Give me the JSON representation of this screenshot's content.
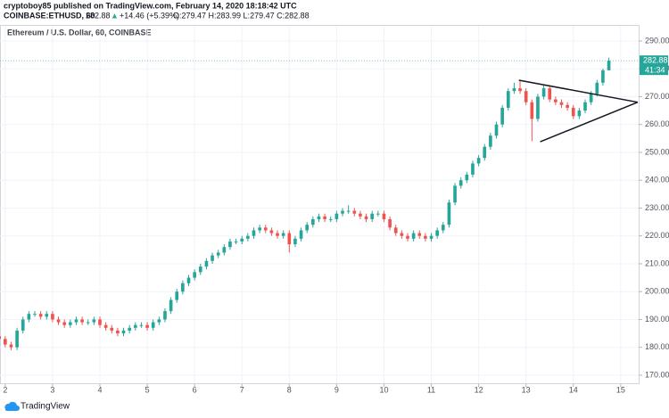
{
  "header": {
    "author_line": "cryptoboy85 published on TradingView.com, February 14, 2020 18:18:42 UTC",
    "symbol": "COINBASE:ETHUSD, 60",
    "price": "282.88",
    "arrow": "▲",
    "change": "+14.46 (+5.39%)",
    "ohlc": "O:279.47 H:283.99 L:279.47 C:282.88"
  },
  "footer": {
    "brand": "TradingView"
  },
  "chart_data": {
    "type": "candlestick",
    "title": "Ethereum / U.S. Dollar, 60, COINBASE",
    "up_color": "#26a69a",
    "down_color": "#ef5350",
    "grid": true,
    "xlim": [
      1.89,
      15.38
    ],
    "xticks": [
      2,
      3,
      4,
      5,
      6,
      7,
      8,
      9,
      10,
      11,
      12,
      13,
      14,
      15
    ],
    "ylim": [
      167.1,
      295.1
    ],
    "yticks": [
      {
        "value": 170,
        "label": "170.00"
      },
      {
        "value": 180,
        "label": "180.00"
      },
      {
        "value": 190,
        "label": "190.00"
      },
      {
        "value": 200,
        "label": "200.00"
      },
      {
        "value": 210,
        "label": "210.00"
      },
      {
        "value": 220,
        "label": "220.00"
      },
      {
        "value": 230,
        "label": "230.00"
      },
      {
        "value": 240,
        "label": "240.00"
      },
      {
        "value": 250,
        "label": "250.00"
      },
      {
        "value": 260,
        "label": "260.00"
      },
      {
        "value": 270,
        "label": "270.00"
      },
      {
        "value": 280,
        "label": "280.00"
      },
      {
        "value": 290,
        "label": "290.00"
      }
    ],
    "x": [
      1.875,
      2,
      2.125,
      2.25,
      2.375,
      2.5,
      2.625,
      2.75,
      2.875,
      3,
      3.125,
      3.25,
      3.375,
      3.5,
      3.625,
      3.75,
      3.875,
      4,
      4.125,
      4.25,
      4.375,
      4.5,
      4.625,
      4.75,
      4.875,
      5,
      5.125,
      5.25,
      5.375,
      5.5,
      5.625,
      5.75,
      5.875,
      6,
      6.125,
      6.25,
      6.375,
      6.5,
      6.625,
      6.75,
      6.875,
      7,
      7.125,
      7.25,
      7.375,
      7.5,
      7.625,
      7.75,
      7.875,
      8,
      8.125,
      8.25,
      8.375,
      8.5,
      8.625,
      8.75,
      8.875,
      9,
      9.125,
      9.25,
      9.375,
      9.5,
      9.625,
      9.75,
      9.875,
      10,
      10.125,
      10.25,
      10.375,
      10.5,
      10.625,
      10.75,
      10.875,
      11,
      11.125,
      11.25,
      11.375,
      11.5,
      11.625,
      11.75,
      11.875,
      12,
      12.125,
      12.25,
      12.375,
      12.5,
      12.625,
      12.75,
      12.875,
      13,
      13.125,
      13.25,
      13.375,
      13.5,
      13.625,
      13.75,
      13.875,
      14,
      14.125,
      14.25,
      14.375,
      14.5,
      14.625,
      14.75
    ],
    "open": [
      184,
      183,
      181,
      180,
      186,
      190,
      192,
      192,
      191,
      192,
      190,
      189,
      188,
      189,
      190,
      189,
      189,
      190,
      188,
      187,
      186,
      185,
      186,
      187,
      188,
      188,
      187,
      189,
      190,
      193,
      197,
      200,
      203,
      205,
      207,
      209,
      211,
      213,
      214,
      216,
      218,
      218,
      219,
      220,
      222,
      223,
      222,
      221,
      220,
      221,
      217,
      219,
      222,
      224,
      226,
      227,
      226,
      226,
      228,
      229,
      229,
      228,
      227,
      226,
      228,
      228,
      226,
      223,
      221,
      220,
      219,
      221,
      220,
      219,
      220,
      222,
      224,
      232,
      238,
      240,
      242,
      246,
      248,
      252,
      256,
      260,
      266,
      272,
      273,
      272,
      268,
      262,
      270,
      273,
      269,
      268,
      267,
      266,
      263,
      265,
      268,
      271,
      275,
      279.47
    ],
    "high": [
      185,
      184,
      182,
      187,
      191,
      193,
      193,
      193,
      193,
      193,
      191,
      190,
      190,
      191,
      191,
      190,
      191,
      191,
      189,
      188,
      187,
      187,
      188,
      189,
      189,
      189,
      190,
      191,
      194,
      198,
      201,
      204,
      206,
      208,
      210,
      212,
      214,
      215,
      217,
      219,
      219,
      220,
      221,
      223,
      224,
      224,
      223,
      222,
      222,
      222,
      220,
      223,
      225,
      227,
      228,
      228,
      227,
      229,
      230,
      231,
      230,
      229,
      228,
      229,
      229,
      229,
      227,
      224,
      222,
      221,
      222,
      222,
      221,
      221,
      223,
      225,
      233,
      239,
      241,
      243,
      247,
      249,
      253,
      257,
      261,
      267,
      273,
      275,
      276,
      273,
      269,
      271,
      274,
      274,
      270,
      269,
      268,
      267,
      266,
      269,
      272,
      276,
      280,
      283.99
    ],
    "low": [
      182,
      180,
      179,
      179,
      185,
      189,
      191,
      190,
      190,
      189,
      188,
      187,
      187,
      188,
      188,
      188,
      188,
      187,
      186,
      185,
      184,
      184,
      185,
      186,
      187,
      186,
      186,
      188,
      189,
      192,
      196,
      199,
      202,
      204,
      206,
      208,
      210,
      212,
      213,
      215,
      217,
      217,
      218,
      219,
      221,
      221,
      220,
      219,
      219,
      214,
      216,
      218,
      221,
      223,
      225,
      225,
      225,
      225,
      227,
      228,
      227,
      226,
      225,
      225,
      227,
      225,
      222,
      220,
      219,
      218,
      218,
      219,
      218,
      218,
      219,
      221,
      223,
      231,
      237,
      239,
      241,
      245,
      247,
      251,
      255,
      259,
      265,
      271,
      271,
      267,
      254,
      261,
      269,
      268,
      267,
      266,
      265,
      262,
      262,
      264,
      267,
      270,
      274,
      279.47
    ],
    "close": [
      183,
      181,
      180,
      186,
      190,
      192,
      192,
      191,
      192,
      190,
      189,
      188,
      189,
      190,
      189,
      189,
      190,
      188,
      187,
      186,
      185,
      186,
      187,
      188,
      188,
      187,
      189,
      190,
      193,
      197,
      200,
      203,
      205,
      207,
      209,
      211,
      213,
      214,
      216,
      218,
      218,
      219,
      220,
      222,
      223,
      222,
      221,
      220,
      221,
      217,
      219,
      222,
      224,
      226,
      227,
      226,
      226,
      228,
      229,
      229,
      228,
      227,
      226,
      228,
      228,
      226,
      223,
      221,
      220,
      219,
      221,
      220,
      219,
      220,
      222,
      224,
      232,
      238,
      240,
      242,
      246,
      248,
      252,
      256,
      260,
      266,
      272,
      273,
      272,
      268,
      262,
      270,
      273,
      269,
      268,
      267,
      266,
      263,
      265,
      268,
      271,
      275,
      279.47,
      282.88
    ],
    "last_price": 282.88,
    "countdown": "41:34",
    "trendlines": [
      {
        "x": [
          12.85,
          15.36
        ],
        "y": [
          275.9,
          268
        ]
      },
      {
        "x": [
          13.3,
          15.36
        ],
        "y": [
          253.8,
          268
        ]
      }
    ]
  }
}
